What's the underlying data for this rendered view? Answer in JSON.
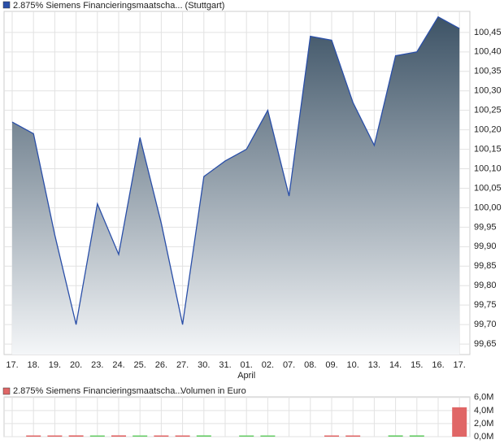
{
  "chart_data": [
    {
      "type": "area",
      "title": "2.875% Siemens Financieringsmaatscha... (Stuttgart)",
      "categories": [
        "17.",
        "18.",
        "19.",
        "20.",
        "23.",
        "24.",
        "25.",
        "26.",
        "27.",
        "30.",
        "31.",
        "01.",
        "02.",
        "07.",
        "08.",
        "09.",
        "10.",
        "13.",
        "14.",
        "15.",
        "16.",
        "17."
      ],
      "month_label": "April",
      "values": [
        100.22,
        100.19,
        99.93,
        99.7,
        100.01,
        99.88,
        100.18,
        99.96,
        99.7,
        100.08,
        100.12,
        100.15,
        100.25,
        100.03,
        100.44,
        100.43,
        100.27,
        100.16,
        100.39,
        100.4,
        100.49,
        100.46
      ],
      "color": "#2a4fa8",
      "ylim": [
        99.623,
        100.504
      ],
      "yticks": [
        {
          "value": 99.65,
          "label": "99,65"
        },
        {
          "value": 99.7,
          "label": "99,70"
        },
        {
          "value": 99.75,
          "label": "99,75"
        },
        {
          "value": 99.8,
          "label": "99,80"
        },
        {
          "value": 99.85,
          "label": "99,85"
        },
        {
          "value": 99.9,
          "label": "99,90"
        },
        {
          "value": 99.95,
          "label": "99,95"
        },
        {
          "value": 100.0,
          "label": "100,00"
        },
        {
          "value": 100.05,
          "label": "100,05"
        },
        {
          "value": 100.1,
          "label": "100,10"
        },
        {
          "value": 100.15,
          "label": "100,15"
        },
        {
          "value": 100.2,
          "label": "100,20"
        },
        {
          "value": 100.25,
          "label": "100,25"
        },
        {
          "value": 100.3,
          "label": "100,30"
        },
        {
          "value": 100.35,
          "label": "100,35"
        },
        {
          "value": 100.4,
          "label": "100,40"
        },
        {
          "value": 100.45,
          "label": "100,45"
        }
      ],
      "grid": true
    },
    {
      "type": "bar",
      "title": "2.875% Siemens Financieringsmaatscha...",
      "subtitle": "Volumen in Euro",
      "values": [
        null,
        100000,
        100000,
        200000,
        100000,
        200000,
        100000,
        100000,
        100000,
        200000,
        null,
        100000,
        100000,
        null,
        null,
        100000,
        100000,
        null,
        200000,
        200000,
        null,
        4500000
      ],
      "colors": [
        "#e06666",
        "#e06666",
        "#e06666",
        "#e06666",
        "#66cc66",
        "#e06666",
        "#66cc66",
        "#e06666",
        "#e06666",
        "#66cc66",
        "#66cc66",
        "#66cc66",
        "#66cc66",
        "#66cc66",
        "#e06666",
        "#e06666",
        "#e06666",
        "#66cc66",
        "#66cc66",
        "#66cc66",
        "#e06666",
        "#e06666"
      ],
      "ylim": [
        0,
        6100000
      ],
      "yticks": [
        {
          "value": 0,
          "label": "0,0M"
        },
        {
          "value": 2000000,
          "label": "2,0M"
        },
        {
          "value": 4000000,
          "label": "4,0M"
        },
        {
          "value": 6000000,
          "label": "6,0M"
        }
      ],
      "grid": true
    }
  ]
}
